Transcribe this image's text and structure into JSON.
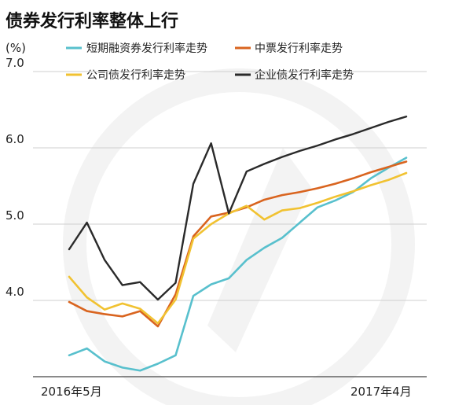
{
  "chart_data": {
    "type": "line",
    "title": "债券发行利率整体上行",
    "unit": "(%)",
    "ylim": [
      3.0,
      7.0
    ],
    "yticks": [
      "7.0",
      "6.0",
      "5.0",
      "4.0"
    ],
    "xlabels": {
      "start": "2016年5月",
      "end": "2017年4月"
    },
    "x": [
      1,
      2,
      3,
      4,
      5,
      6,
      7,
      8,
      9,
      10,
      11,
      12,
      13,
      14,
      15,
      16,
      17,
      18,
      19,
      20
    ],
    "series": [
      {
        "name": "短期融资券发行利率走势",
        "color": "#58c0cd",
        "values": [
          3.28,
          3.37,
          3.2,
          3.12,
          3.08,
          3.17,
          3.28,
          4.06,
          4.21,
          4.29,
          4.53,
          4.69,
          4.82,
          5.02,
          5.22,
          5.31,
          5.42,
          5.6,
          5.74,
          5.87
        ]
      },
      {
        "name": "中票发行利率走势",
        "color": "#d9641f",
        "values": [
          3.98,
          3.86,
          3.82,
          3.79,
          3.86,
          3.66,
          4.08,
          4.84,
          5.1,
          5.15,
          5.22,
          5.32,
          5.38,
          5.42,
          5.47,
          5.53,
          5.6,
          5.68,
          5.75,
          5.82
        ]
      },
      {
        "name": "公司债发行利率走势",
        "color": "#f1c231",
        "values": [
          4.31,
          4.04,
          3.88,
          3.96,
          3.89,
          3.7,
          4.01,
          4.81,
          5.0,
          5.14,
          5.24,
          5.06,
          5.18,
          5.21,
          5.28,
          5.36,
          5.43,
          5.51,
          5.58,
          5.67
        ]
      },
      {
        "name": "企业债发行利率走势",
        "color": "#2a2a2a",
        "values": [
          4.67,
          5.02,
          4.53,
          4.2,
          4.24,
          4.01,
          4.23,
          5.53,
          6.06,
          5.14,
          5.69,
          5.79,
          5.88,
          5.96,
          6.03,
          6.11,
          6.18,
          6.26,
          6.34,
          6.41
        ]
      }
    ],
    "legend": {
      "placement": "top"
    }
  }
}
